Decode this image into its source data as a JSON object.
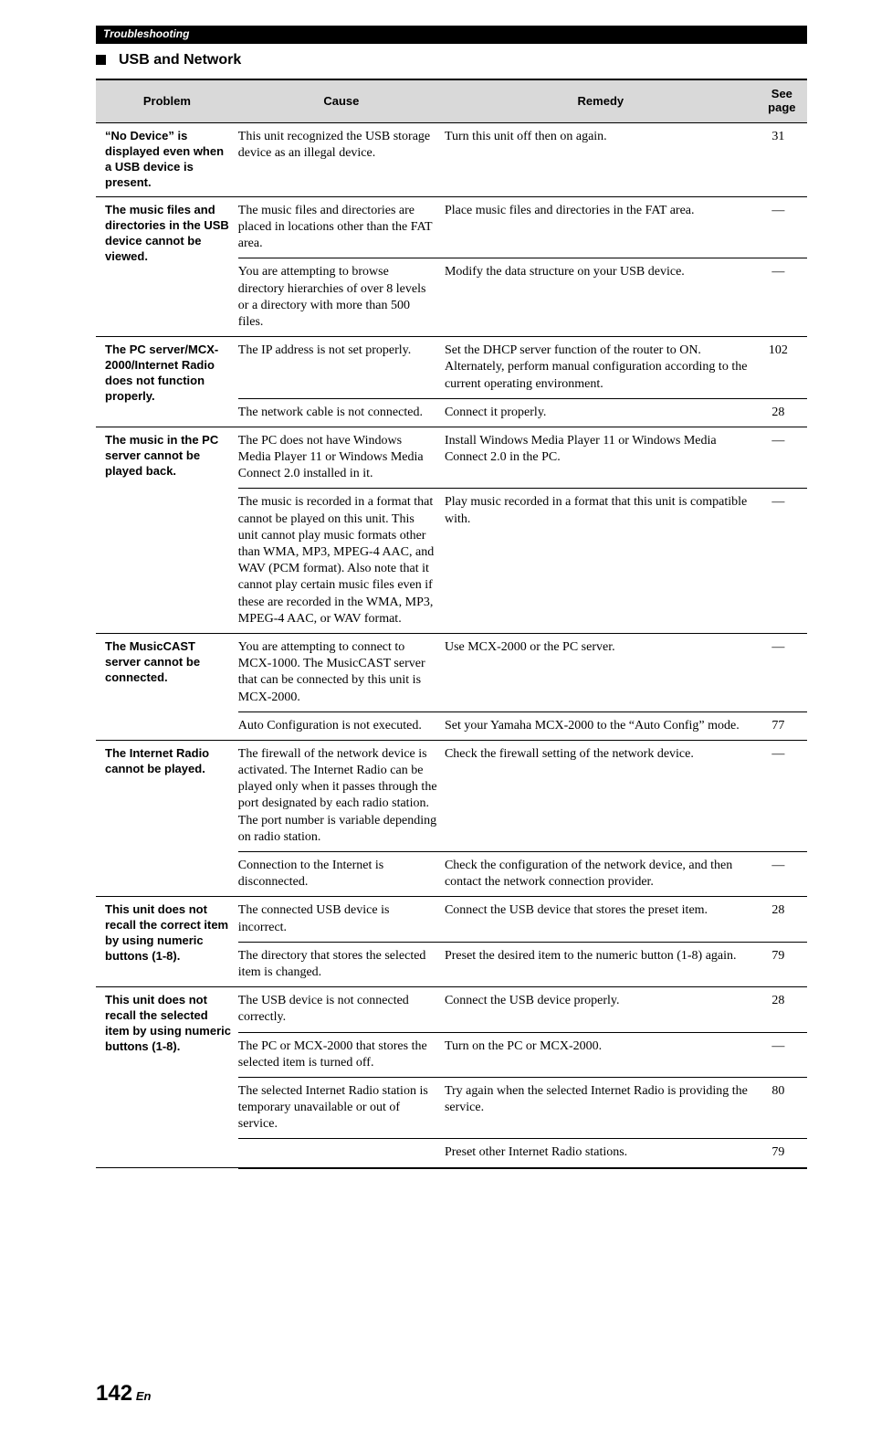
{
  "header": {
    "chapter": "Troubleshooting"
  },
  "section": {
    "title": "USB and Network"
  },
  "table": {
    "headers": {
      "problem": "Problem",
      "cause": "Cause",
      "remedy": "Remedy",
      "page": "See page"
    },
    "rows": [
      {
        "problem": "“No Device” is displayed even when a USB device is present.",
        "cause": "This unit recognized the USB storage device as an illegal device.",
        "remedy": "Turn this unit off then on again.",
        "page": "31",
        "pspan": 1
      },
      {
        "problem": "The music files and directories in the USB device cannot be viewed.",
        "cause": "The music files and directories are placed in locations other than the FAT area.",
        "remedy": "Place music files and directories in the FAT area.",
        "page": "—",
        "pspan": 2
      },
      {
        "cause": "You are attempting to browse directory hierarchies of over 8 levels or a directory with more than 500 files.",
        "remedy": "Modify the data structure on your USB device.",
        "page": "—"
      },
      {
        "problem": "The PC server/MCX-2000/Internet Radio does not function properly.",
        "cause": "The IP address is not set properly.",
        "remedy": "Set the DHCP server function of the router to ON. Alternately, perform manual configuration according to the current operating environment.",
        "page": "102",
        "pspan": 2
      },
      {
        "cause": "The network cable is not connected.",
        "remedy": "Connect it properly.",
        "page": "28"
      },
      {
        "problem": "The music in the PC server cannot be played back.",
        "cause": "The PC does not have Windows Media Player 11 or Windows Media Connect 2.0 installed in it.",
        "remedy": "Install Windows Media Player 11 or Windows Media Connect 2.0 in the PC.",
        "page": "—",
        "pspan": 2
      },
      {
        "cause": "The music is recorded in a format that cannot be played on this unit. This unit cannot play music formats other than WMA, MP3, MPEG-4 AAC, and WAV (PCM format). Also note that it cannot play certain music files even if these are recorded in the WMA, MP3, MPEG-4 AAC, or WAV format.",
        "remedy": "Play music recorded in a format that this unit is compatible with.",
        "page": "—"
      },
      {
        "problem": "The MusicCAST server cannot be connected.",
        "cause": "You are attempting to connect to MCX-1000. The MusicCAST server that can be connected by this unit is MCX-2000.",
        "remedy": "Use MCX-2000 or the PC server.",
        "page": "—",
        "pspan": 2
      },
      {
        "cause": "Auto Configuration is not executed.",
        "remedy": "Set your Yamaha MCX-2000 to the “Auto Config” mode.",
        "page": "77"
      },
      {
        "problem": "The Internet Radio cannot be played.",
        "cause": "The firewall of the network device is activated. The Internet Radio can be played only when it passes through the port designated by each radio station. The port number is variable depending on radio station.",
        "remedy": "Check the firewall setting of the network device.",
        "page": "—",
        "pspan": 2
      },
      {
        "cause": "Connection to the Internet is disconnected.",
        "remedy": "Check the configuration of the network device, and then contact the network connection provider.",
        "page": "—"
      },
      {
        "problem": "This unit does not recall the correct item by using numeric buttons (1-8).",
        "cause": "The connected USB device is incorrect.",
        "remedy": "Connect the USB device that stores the preset item.",
        "page": "28",
        "pspan": 2
      },
      {
        "cause": "The directory that stores the selected item is changed.",
        "remedy": "Preset the desired item to the numeric button (1-8) again.",
        "page": "79"
      },
      {
        "problem": "This unit does not recall the selected item by using numeric buttons (1-8).",
        "cause": "The USB device is not connected correctly.",
        "remedy": "Connect the USB device properly.",
        "page": "28",
        "pspan": 4
      },
      {
        "cause": "The PC or MCX-2000 that stores the selected item is turned off.",
        "remedy": "Turn on the PC or MCX-2000.",
        "page": "—"
      },
      {
        "cause": "The selected Internet Radio station is temporary unavailable or out of service.",
        "remedy": "Try again when the selected Internet Radio is providing the service.",
        "page": "80"
      },
      {
        "cause": "",
        "remedy": "Preset other Internet Radio stations.",
        "page": "79"
      }
    ]
  },
  "footer": {
    "page_number": "142",
    "lang": "En"
  }
}
